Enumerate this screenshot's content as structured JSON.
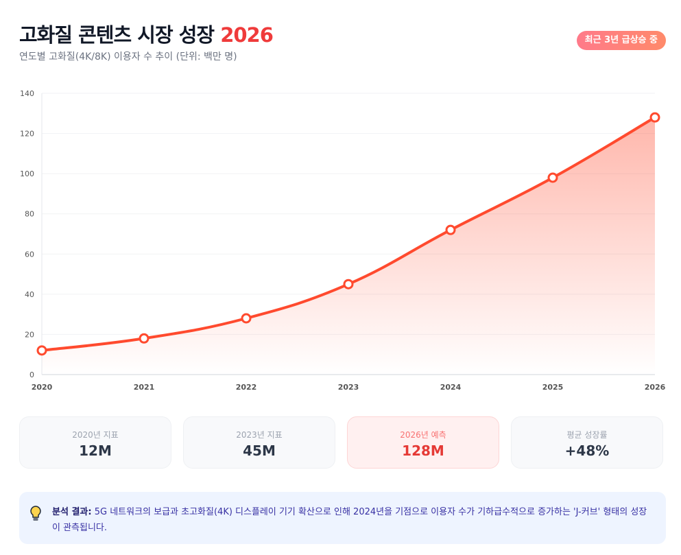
{
  "header": {
    "title": "고화질 콘텐츠 시장 성장",
    "title_highlight": "2026",
    "subtitle": "연도별 고화질(4K/8K) 이용자 수 추이 (단위: 백만 명)",
    "badge": "최근 3년 급상승 중"
  },
  "chart_data": {
    "type": "area",
    "categories": [
      "2020",
      "2021",
      "2022",
      "2023",
      "2024",
      "2025",
      "2026"
    ],
    "values": [
      12,
      18,
      28,
      45,
      72,
      98,
      128
    ],
    "ylim": [
      0,
      140
    ],
    "yticks": [
      0,
      20,
      40,
      60,
      80,
      100,
      120,
      140
    ],
    "grid": true,
    "color": "#ff4a2e"
  },
  "cards": [
    {
      "label": "2020년 지표",
      "value": "12M"
    },
    {
      "label": "2023년 지표",
      "value": "45M"
    },
    {
      "label": "2026년 예측",
      "value": "128M"
    },
    {
      "label": "평균 성장률",
      "value": "+48%"
    }
  ],
  "note": {
    "icon": "lightbulb-icon",
    "label": "분석 결과:",
    "text": " 5G 네트워크의 보급과 초고화질(4K) 디스플레이 기기 확산으로 인해 2024년을 기점으로 이용자 수가 기하급수적으로 증가하는 'J-커브' 형태의 성장이 관측됩니다."
  }
}
